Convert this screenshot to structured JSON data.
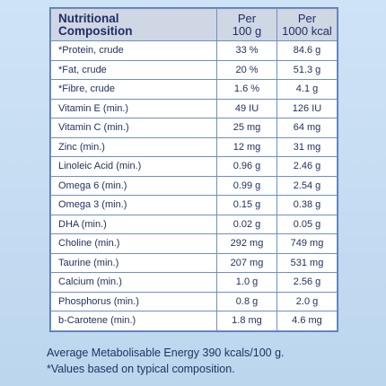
{
  "table": {
    "headers": {
      "name_line1": "Nutritional",
      "name_line2": "Composition",
      "per100_line1": "Per",
      "per100_line2": "100 g",
      "per1000_line1": "Per",
      "per1000_line2": "1000 kcal"
    },
    "rows": [
      {
        "name": "*Protein, crude",
        "per100": "33 %",
        "per1000": "84.6 g"
      },
      {
        "name": "*Fat, crude",
        "per100": "20 %",
        "per1000": "51.3 g"
      },
      {
        "name": "*Fibre, crude",
        "per100": "1.6 %",
        "per1000": "4.1 g"
      },
      {
        "name": "Vitamin E (min.)",
        "per100": "49 IU",
        "per1000": "126 IU"
      },
      {
        "name": "Vitamin C (min.)",
        "per100": "25 mg",
        "per1000": "64 mg"
      },
      {
        "name": "Zinc (min.)",
        "per100": "12 mg",
        "per1000": "31 mg"
      },
      {
        "name": "Linoleic Acid (min.)",
        "per100": "0.96 g",
        "per1000": "2.46 g"
      },
      {
        "name": "Omega 6 (min.)",
        "per100": "0.99 g",
        "per1000": "2.54 g"
      },
      {
        "name": "Omega 3 (min.)",
        "per100": "0.15 g",
        "per1000": "0.38 g"
      },
      {
        "name": "DHA (min.)",
        "per100": "0.02 g",
        "per1000": "0.05 g"
      },
      {
        "name": "Choline (min.)",
        "per100": "292 mg",
        "per1000": "749 mg"
      },
      {
        "name": "Taurine (min.)",
        "per100": "207 mg",
        "per1000": "531 mg"
      },
      {
        "name": "Calcium (min.)",
        "per100": "1.0 g",
        "per1000": "2.56 g"
      },
      {
        "name": "Phosphorus (min.)",
        "per100": "0.8 g",
        "per1000": "2.0 g"
      },
      {
        "name": "b-Carotene (min.)",
        "per100": "1.8 mg",
        "per1000": "4.6 mg"
      }
    ]
  },
  "footnotes": {
    "energy": "Average Metabolisable Energy 390 kcals/100 g.",
    "values": "*Values based on typical composition."
  },
  "colors": {
    "background": "#c5dcf1",
    "header_fill": "#cfd6e4",
    "border": "#6f8fc6",
    "text": "#1e2f5e"
  }
}
